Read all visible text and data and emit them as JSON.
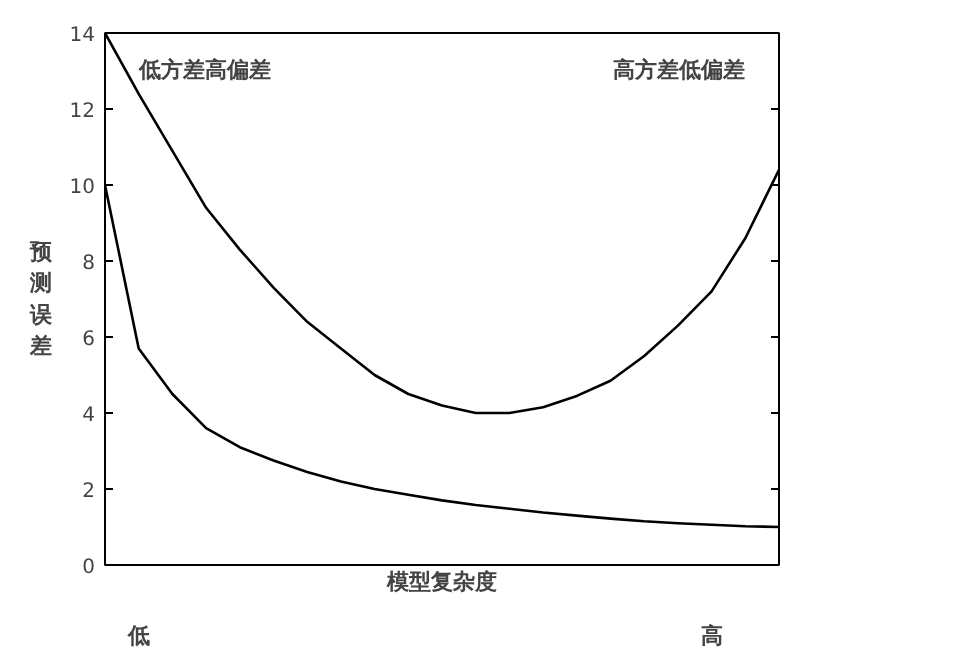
{
  "chart_data": {
    "type": "line",
    "xlabel": "模型复杂度",
    "ylabel": "预测误差",
    "categories": [
      null,
      "低",
      null,
      null,
      null,
      null,
      null,
      null,
      null,
      null,
      null,
      null,
      null,
      null,
      null,
      null,
      null,
      null,
      "高",
      null,
      null
    ],
    "series": [
      {
        "color": "#000000",
        "values": [
          14,
          12.4,
          10.9,
          9.4,
          8.3,
          7.3,
          6.4,
          5.7,
          5.0,
          4.5,
          4.2,
          4.0,
          4.0,
          4.15,
          4.45,
          4.85,
          5.5,
          6.3,
          7.2,
          8.6,
          10.4
        ]
      },
      {
        "color": "#000000",
        "values": [
          10,
          5.7,
          4.5,
          3.6,
          3.1,
          2.75,
          2.45,
          2.2,
          2.0,
          1.85,
          1.7,
          1.58,
          1.48,
          1.38,
          1.3,
          1.22,
          1.15,
          1.1,
          1.06,
          1.02,
          1.0
        ]
      }
    ],
    "ylim": [
      0,
      14
    ],
    "yticks": [
      0,
      2,
      4,
      6,
      8,
      10,
      12,
      14
    ],
    "annotations": [
      "低方差高偏差",
      "高方差低偏差"
    ],
    "line_style": "solid"
  }
}
